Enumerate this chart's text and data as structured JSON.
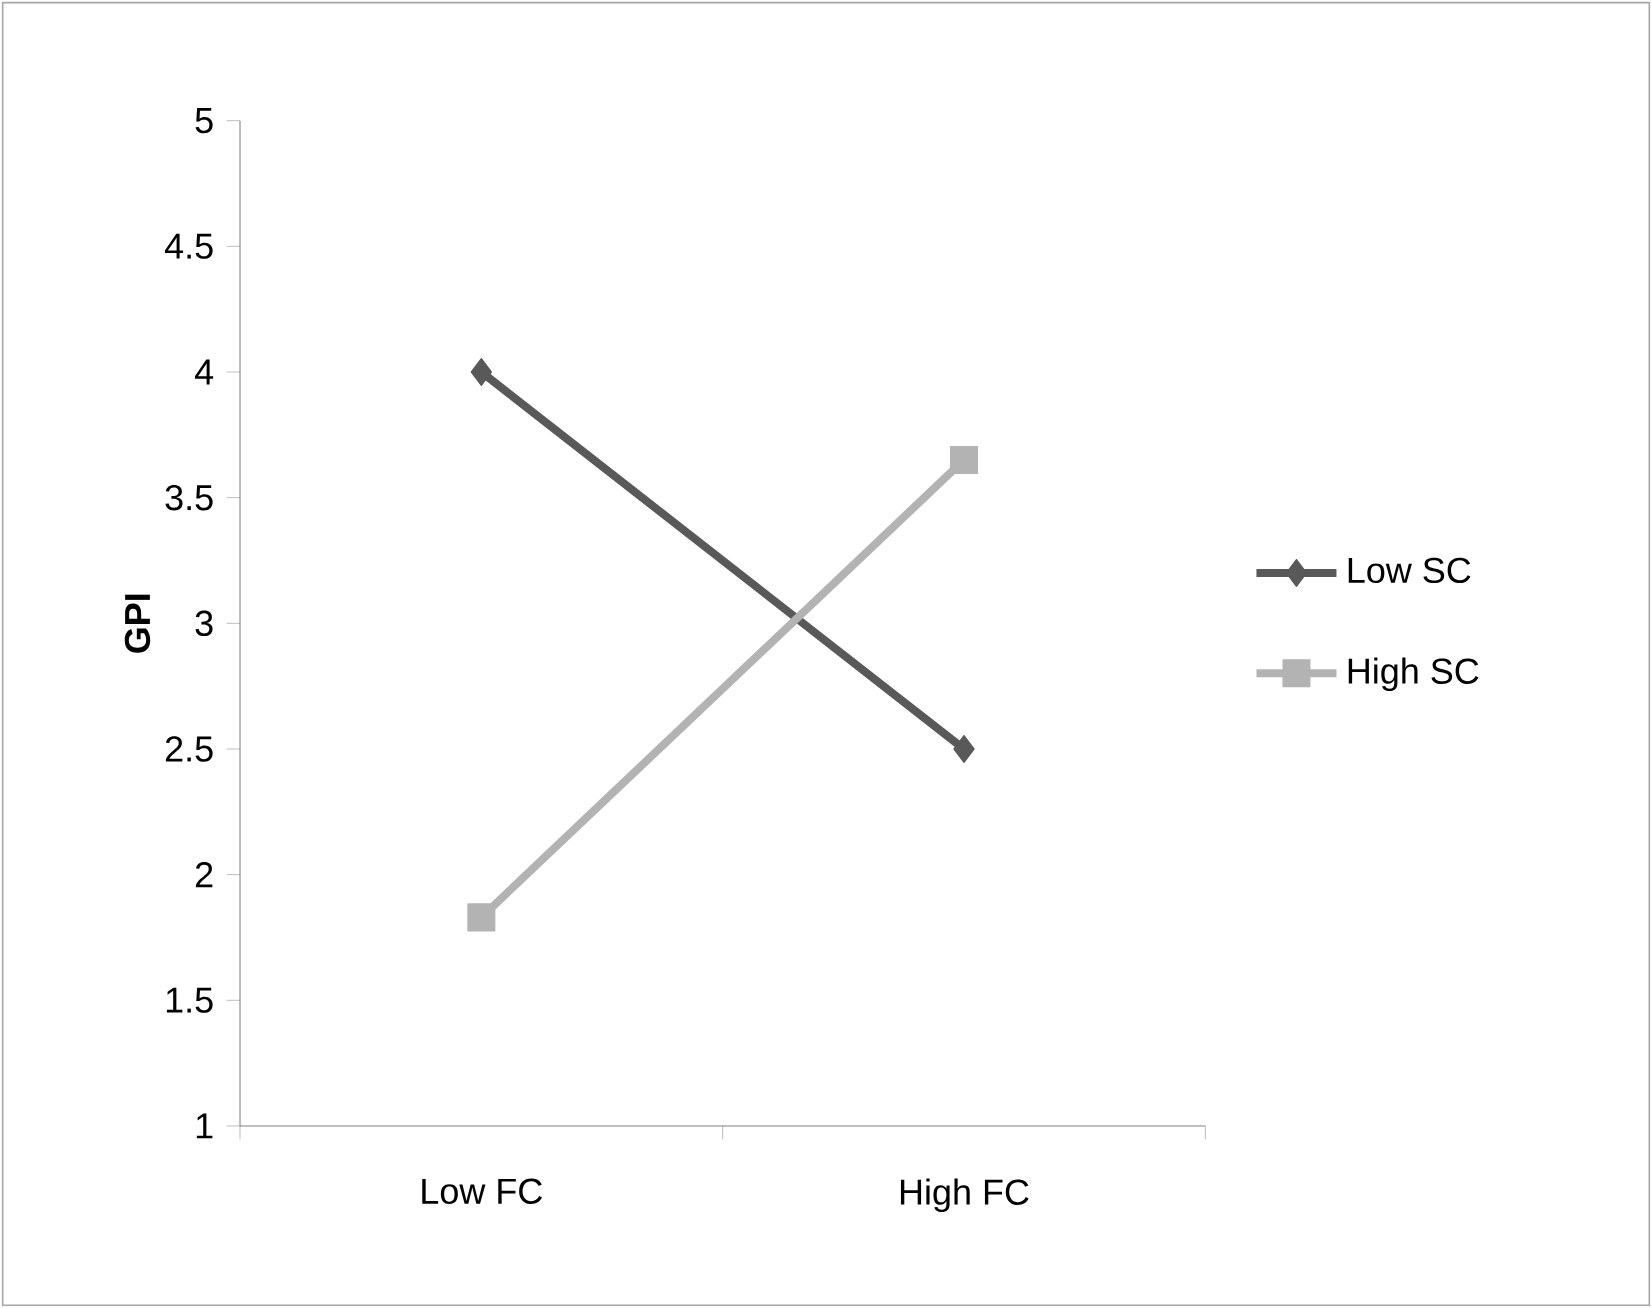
{
  "chart_data": {
    "type": "line",
    "ylabel": "GPI",
    "categories": [
      "Low FC",
      "High FC"
    ],
    "series": [
      {
        "name": "Low SC",
        "color": "#595959",
        "values": [
          4.0,
          2.5
        ],
        "marker": "diamond"
      },
      {
        "name": "High SC",
        "color": "#b3b3b3",
        "values": [
          1.83,
          3.65
        ],
        "marker": "square"
      }
    ],
    "ylim": [
      1,
      5
    ],
    "yticks": [
      1,
      1.5,
      2,
      2.5,
      3,
      3.5,
      4,
      4.5,
      5
    ],
    "legend": "right",
    "grid": false,
    "line_style": "solid"
  }
}
